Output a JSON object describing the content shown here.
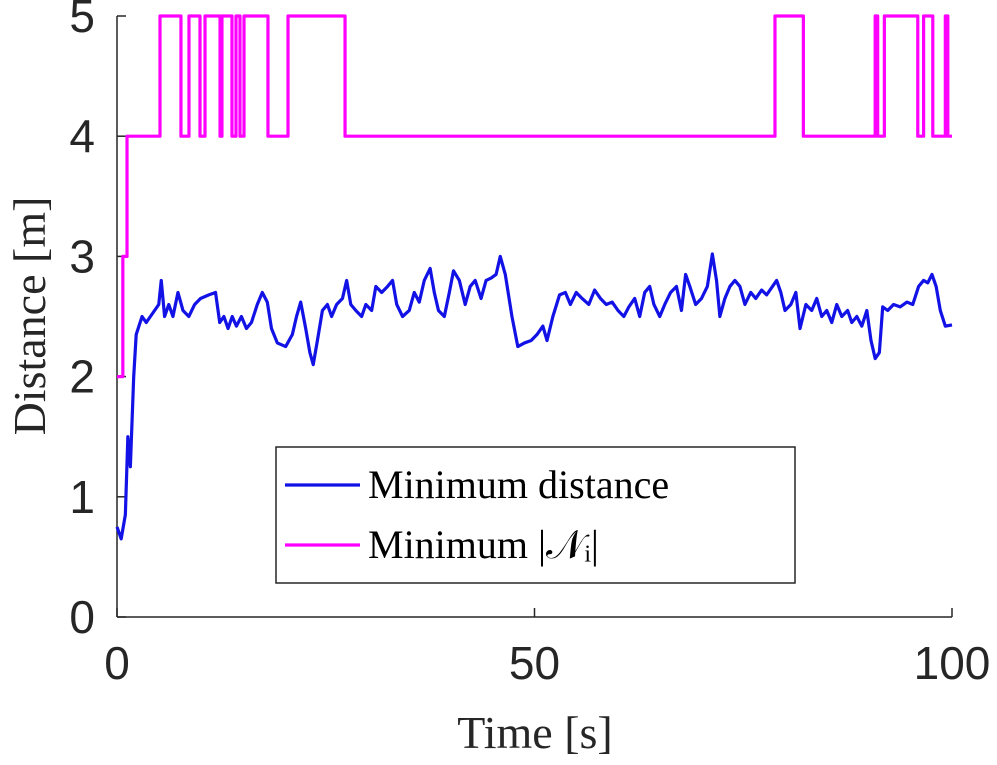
{
  "chart_data": {
    "type": "line",
    "xlabel": "Time [s]",
    "ylabel": "Distance [m]",
    "xlim": [
      0,
      100
    ],
    "xticks": [
      0,
      50,
      100
    ],
    "ylim": [
      0,
      5
    ],
    "yticks": [
      0,
      1,
      2,
      3,
      4,
      5
    ],
    "legend": "bottom-center",
    "series": [
      {
        "name": "Minimum distance",
        "color": "#1212e6",
        "x": [
          0,
          0.5,
          1,
          1.3,
          1.6,
          2,
          2.3,
          3,
          3.5,
          4,
          4.5,
          5,
          5.3,
          5.7,
          6.2,
          6.7,
          7.3,
          7.9,
          8.6,
          9.3,
          10,
          11,
          11.8,
          12.3,
          12.8,
          13.3,
          13.8,
          14.3,
          14.9,
          15.5,
          16.1,
          16.8,
          17.4,
          18,
          18.5,
          19.2,
          20.2,
          21,
          21.5,
          22,
          22.6,
          23.1,
          23.5,
          24,
          24.6,
          25.2,
          25.7,
          26.3,
          27,
          27.5,
          28,
          28.6,
          29.3,
          29.8,
          30.5,
          31,
          31.7,
          32.4,
          33,
          33.5,
          34.2,
          35,
          35.6,
          36.2,
          36.8,
          37.5,
          38,
          38.5,
          39.2,
          39.8,
          40.3,
          41,
          41.7,
          42.3,
          42.9,
          43.6,
          44.2,
          44.8,
          45.4,
          45.9,
          46.5,
          47.3,
          48,
          48.8,
          49.6,
          50.3,
          51,
          51.5,
          52.2,
          53,
          53.7,
          54.3,
          55,
          55.7,
          56.5,
          57.2,
          57.9,
          58.6,
          59.3,
          60,
          60.7,
          61.3,
          62,
          62.6,
          63.2,
          63.8,
          64.3,
          65,
          65.6,
          66.3,
          67,
          67.6,
          68.1,
          68.6,
          69.3,
          70,
          70.7,
          71.3,
          71.8,
          72.2,
          72.8,
          73.4,
          74,
          74.6,
          75.2,
          75.9,
          76.5,
          77.2,
          77.8,
          78.5,
          79,
          79.5,
          80,
          80.7,
          81.3,
          81.8,
          82.5,
          83.2,
          83.8,
          84.4,
          85,
          85.6,
          86.2,
          86.8,
          87.5,
          88,
          88.6,
          89.2,
          89.8,
          90.3,
          90.8,
          91.3,
          91.7,
          92.3,
          93,
          93.8,
          94.6,
          95.3,
          96,
          96.6,
          97.1,
          97.6,
          98.1,
          98.6,
          99.2,
          100
        ],
        "values": [
          0.75,
          0.65,
          0.85,
          1.5,
          1.25,
          2.0,
          2.35,
          2.5,
          2.45,
          2.5,
          2.55,
          2.6,
          2.8,
          2.5,
          2.6,
          2.5,
          2.7,
          2.55,
          2.5,
          2.6,
          2.65,
          2.68,
          2.7,
          2.45,
          2.5,
          2.4,
          2.5,
          2.42,
          2.5,
          2.4,
          2.45,
          2.6,
          2.7,
          2.62,
          2.4,
          2.28,
          2.25,
          2.35,
          2.5,
          2.62,
          2.4,
          2.2,
          2.1,
          2.3,
          2.55,
          2.6,
          2.5,
          2.6,
          2.65,
          2.8,
          2.6,
          2.55,
          2.5,
          2.6,
          2.55,
          2.75,
          2.7,
          2.75,
          2.8,
          2.6,
          2.5,
          2.55,
          2.7,
          2.62,
          2.8,
          2.9,
          2.7,
          2.55,
          2.5,
          2.7,
          2.88,
          2.8,
          2.6,
          2.75,
          2.8,
          2.65,
          2.8,
          2.82,
          2.85,
          3.0,
          2.85,
          2.5,
          2.25,
          2.28,
          2.3,
          2.35,
          2.42,
          2.3,
          2.5,
          2.68,
          2.7,
          2.6,
          2.7,
          2.65,
          2.6,
          2.72,
          2.65,
          2.6,
          2.62,
          2.55,
          2.5,
          2.58,
          2.65,
          2.5,
          2.7,
          2.75,
          2.6,
          2.5,
          2.6,
          2.7,
          2.75,
          2.55,
          2.85,
          2.75,
          2.6,
          2.65,
          2.75,
          3.02,
          2.8,
          2.5,
          2.65,
          2.75,
          2.8,
          2.75,
          2.6,
          2.7,
          2.65,
          2.72,
          2.68,
          2.75,
          2.8,
          2.7,
          2.55,
          2.6,
          2.7,
          2.4,
          2.6,
          2.55,
          2.65,
          2.5,
          2.55,
          2.45,
          2.6,
          2.5,
          2.55,
          2.45,
          2.5,
          2.42,
          2.55,
          2.3,
          2.15,
          2.2,
          2.58,
          2.55,
          2.6,
          2.58,
          2.62,
          2.6,
          2.75,
          2.8,
          2.78,
          2.85,
          2.75,
          2.55,
          2.42,
          2.43
        ]
      },
      {
        "name": "Minimum |𝒩ᵢ|",
        "color": "#ff00ff",
        "x": [
          0,
          0.7,
          0.7,
          1.2,
          1.2,
          5.15,
          5.15,
          7.66,
          7.66,
          8.62,
          8.62,
          9.94,
          9.94,
          10.54,
          10.54,
          12.34,
          12.34,
          12.57,
          12.57,
          13.77,
          13.77,
          14.25,
          14.25,
          14.73,
          14.73,
          15.21,
          15.21,
          18.08,
          18.08,
          20.48,
          20.48,
          27.31,
          27.31,
          78.8,
          78.8,
          82.2,
          82.2,
          90.8,
          90.8,
          91.1,
          91.1,
          91.9,
          91.9,
          95.9,
          95.9,
          96.6,
          96.6,
          97.7,
          97.7,
          99.2,
          99.2,
          99.5,
          99.5,
          100
        ],
        "values": [
          2,
          2,
          3,
          3,
          4,
          4,
          5,
          5,
          4,
          4,
          5,
          5,
          4,
          4,
          5,
          5,
          4,
          4,
          5,
          5,
          4,
          4,
          5,
          5,
          4,
          4,
          5,
          5,
          4,
          4,
          5,
          5,
          4,
          4,
          5,
          5,
          4,
          4,
          5,
          5,
          4,
          4,
          5,
          5,
          4,
          4,
          5,
          5,
          4,
          4,
          5,
          5,
          4,
          4
        ]
      }
    ]
  }
}
